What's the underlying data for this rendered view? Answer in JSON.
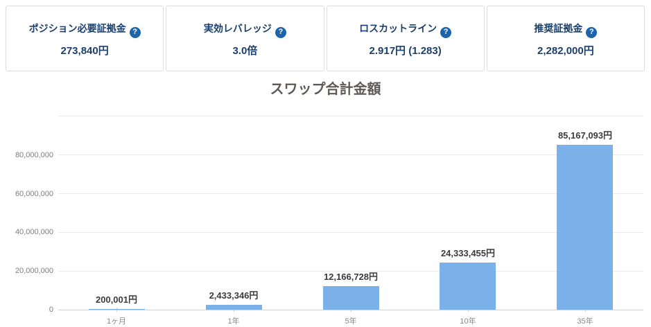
{
  "icons": {
    "help": "?"
  },
  "cards": [
    {
      "label": "ポジション必要証拠金",
      "value": "273,840円"
    },
    {
      "label": "実効レバレッジ",
      "value": "3.0倍"
    },
    {
      "label": "ロスカットライン",
      "value": "2.917円 (1.283)"
    },
    {
      "label": "推奨証拠金",
      "value": "2,282,000円"
    }
  ],
  "chart_data": {
    "type": "bar",
    "title": "スワップ合計金額",
    "categories": [
      "1ヶ月",
      "1年",
      "5年",
      "10年",
      "35年"
    ],
    "values": [
      200001,
      2433346,
      12166728,
      24333455,
      85167093
    ],
    "bar_labels": [
      "200,001円",
      "2,433,346円",
      "12,166,728円",
      "24,333,455円",
      "85,167,093円"
    ],
    "xlabel": "",
    "ylabel": "",
    "ylim": [
      0,
      100000000
    ],
    "yticks": [
      {
        "value": 0,
        "label": "0"
      },
      {
        "value": 20000000,
        "label": "20,000,000"
      },
      {
        "value": 40000000,
        "label": "40,000,000"
      },
      {
        "value": 60000000,
        "label": "60,000,000"
      },
      {
        "value": 80000000,
        "label": "80,000,000"
      }
    ],
    "grid": true,
    "legend": false,
    "colors": {
      "bar": "#7ab1e8",
      "grid": "#e9eaef",
      "axis": "#c8d2de",
      "bar_label": "#3b3b3d",
      "tick_label": "#84888f",
      "y_tick_label": "#7c7c80",
      "title": "#5e5955",
      "card_text": "#1a3f6d",
      "help_icon_bg": "#1b65ae"
    }
  }
}
